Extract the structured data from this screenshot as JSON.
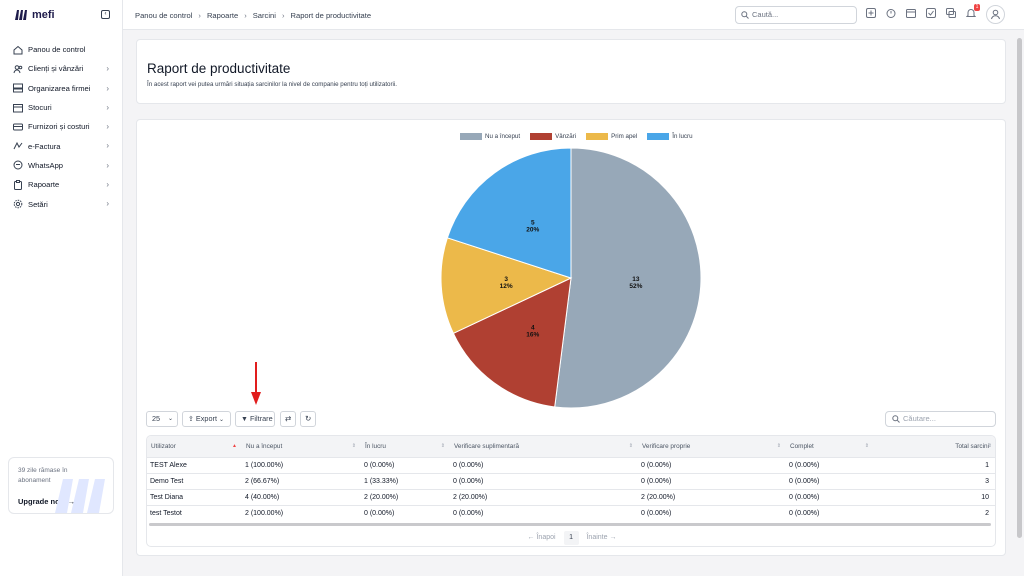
{
  "brand": {
    "name": "mefi"
  },
  "sidebar": {
    "items": [
      {
        "label": "Panou de control",
        "icon": "home-icon",
        "chevron": false
      },
      {
        "label": "Clienți și vânzări",
        "icon": "users-icon",
        "chevron": true
      },
      {
        "label": "Organizarea firmei",
        "icon": "org-icon",
        "chevron": true
      },
      {
        "label": "Stocuri",
        "icon": "box-icon",
        "chevron": true
      },
      {
        "label": "Furnizori și costuri",
        "icon": "truck-icon",
        "chevron": true
      },
      {
        "label": "e-Factura",
        "icon": "efactura-icon",
        "chevron": true
      },
      {
        "label": "WhatsApp",
        "icon": "whatsapp-icon",
        "chevron": true
      },
      {
        "label": "Rapoarte",
        "icon": "clipboard-icon",
        "chevron": true
      },
      {
        "label": "Setări",
        "icon": "gear-icon",
        "chevron": true
      }
    ],
    "upgrade": {
      "text": "39 zile rămase în abonament",
      "button": "Upgrade now"
    }
  },
  "topbar": {
    "breadcrumbs": [
      "Panou de control",
      "Rapoarte",
      "Sarcini",
      "Raport de productivitate"
    ],
    "search_placeholder": "Caută...",
    "notification_count": "1"
  },
  "header": {
    "title": "Raport de productivitate",
    "description": "În acest raport vei putea urmări situația sarcinilor la nivel de companie pentru toți utilizatorii."
  },
  "chart_data": {
    "type": "pie",
    "legend_position": "top",
    "slices": [
      {
        "name": "Nu a început",
        "value": 13,
        "label_count": "13",
        "label_pct": "52%",
        "color": "#97a8b8"
      },
      {
        "name": "Vânzări",
        "value": 4,
        "label_count": "4",
        "label_pct": "16%",
        "color": "#b04032"
      },
      {
        "name": "Prim apel",
        "value": 3,
        "label_count": "3",
        "label_pct": "12%",
        "color": "#ecb94a"
      },
      {
        "name": "În lucru",
        "value": 5,
        "label_count": "5",
        "label_pct": "20%",
        "color": "#4aa6e8"
      }
    ]
  },
  "toolbar": {
    "page_size": "25",
    "export_label": "Export",
    "filter_label": "Filtrare",
    "search_placeholder": "Căutare..."
  },
  "table": {
    "columns": [
      "Utilizator",
      "Nu a început",
      "În lucru",
      "Verificare suplimentară",
      "Verificare proprie",
      "Complet",
      "Total sarcini"
    ],
    "rows": [
      [
        "TEST Alexe",
        "1 (100.00%)",
        "0 (0.00%)",
        "0 (0.00%)",
        "0 (0.00%)",
        "0 (0.00%)",
        "1"
      ],
      [
        "Demo Test",
        "2 (66.67%)",
        "1 (33.33%)",
        "0 (0.00%)",
        "0 (0.00%)",
        "0 (0.00%)",
        "3"
      ],
      [
        "Test Diana",
        "4 (40.00%)",
        "2 (20.00%)",
        "2 (20.00%)",
        "2 (20.00%)",
        "0 (0.00%)",
        "10"
      ],
      [
        "test Testot",
        "2 (100.00%)",
        "0 (0.00%)",
        "0 (0.00%)",
        "0 (0.00%)",
        "0 (0.00%)",
        "2"
      ]
    ]
  },
  "pagination": {
    "prev": "← Înapoi",
    "page": "1",
    "next": "Înainte →"
  },
  "colors": {
    "accent": "#1e1b4b",
    "arrow": "#e11d1d"
  }
}
